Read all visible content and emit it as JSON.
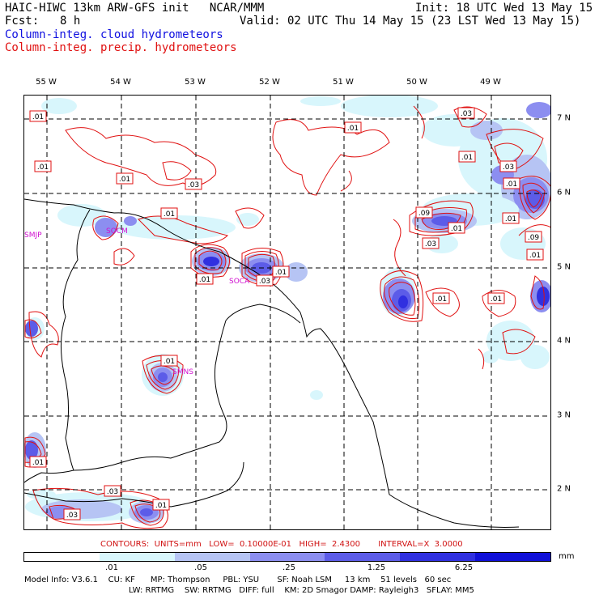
{
  "header": {
    "title_left": "HAIC-HIWC 13km ARW-GFS init   NCAR/MMM",
    "init": "Init: 18 UTC Wed 13 May 15",
    "fcst_label": "Fcst:",
    "fcst_value": "8 h",
    "valid": "Valid: 02 UTC Thu 14 May 15 (23 LST Wed 13 May 15)",
    "field1": "Column-integ. cloud hydrometeors",
    "field2": "Column-integ. precip. hydrometeors"
  },
  "colors": {
    "field1": "#1010e0",
    "field2": "#e01010",
    "contours": "#d01010"
  },
  "axes": {
    "lon_ticks": [
      "55 W",
      "54 W",
      "53 W",
      "52 W",
      "51 W",
      "50 W",
      "49 W"
    ],
    "lat_ticks": [
      "7 N",
      "6 N",
      "5 N",
      "4 N",
      "3 N",
      "2 N"
    ]
  },
  "stations": [
    "SMJP",
    "SOCM",
    "SOCA",
    "SMNS"
  ],
  "contour_labels": [
    ".01",
    ".01",
    ".01",
    ".03",
    ".01",
    ".01",
    ".03",
    ".01",
    ".03",
    ".01",
    ".01",
    ".09",
    ".01",
    ".03",
    ".09",
    ".01",
    ".01",
    ".01",
    ".01",
    ".01",
    ".01",
    ".01",
    ".03",
    ".01",
    ".03",
    ".03"
  ],
  "contour_info": "CONTOURS:  UNITS=mm   LOW=  0.10000E-01   HIGH=  2.4300       INTERVAL=X  3.0000",
  "colorbar": {
    "labels": [
      ".01",
      ".05",
      ".25",
      "1.25",
      "6.25"
    ],
    "unit": "mm",
    "colors": [
      "#ffffff",
      "#d8f6fc",
      "#b6c4f4",
      "#8c8ef0",
      "#5c5ce8",
      "#3030e0",
      "#1010d8"
    ]
  },
  "footer": {
    "line1": "Model Info: V3.6.1    CU: KF      MP: Thompson     PBL: YSU       SF: Noah LSM     13 km    51 levels   60 sec",
    "line2": "LW: RRTMG    SW: RRTMG   DIFF: full    KM: 2D Smagor DAMP: Rayleigh3   SFLAY: MM5"
  }
}
